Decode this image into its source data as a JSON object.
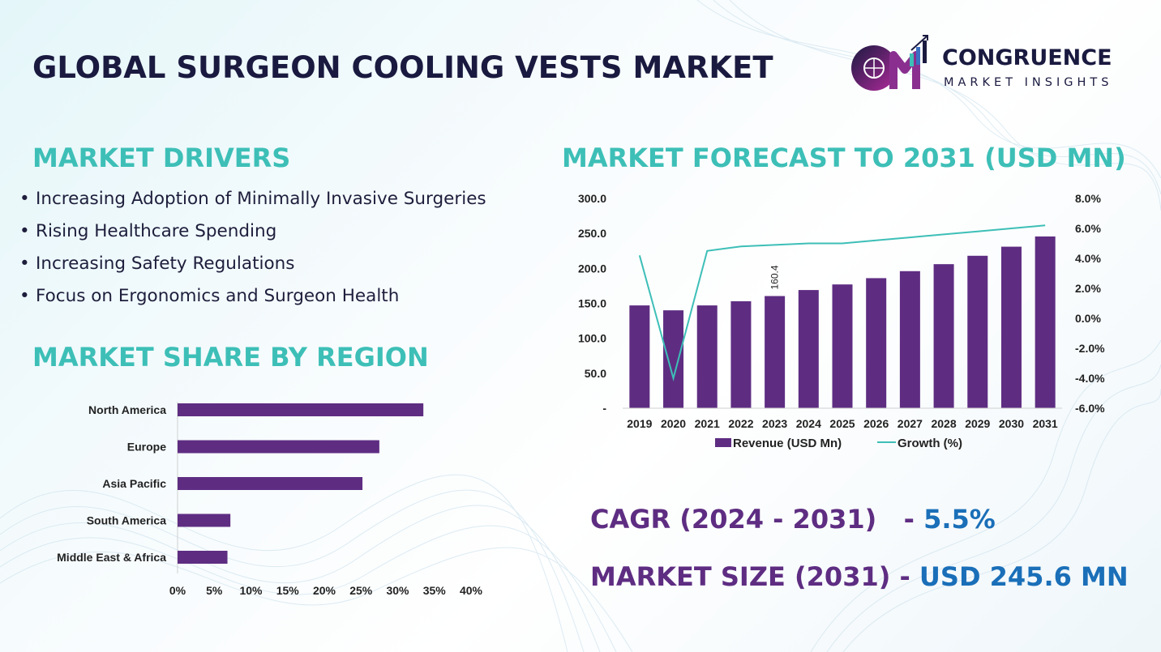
{
  "header": {
    "title": "GLOBAL SURGEON COOLING VESTS MARKET",
    "brand_name": "CONGRUENCE",
    "brand_sub": "MARKET INSIGHTS",
    "logo_letters": "CM"
  },
  "drivers": {
    "heading": "MARKET DRIVERS",
    "items": [
      "Increasing Adoption of Minimally Invasive Surgeries",
      "Rising Healthcare Spending",
      "Increasing Safety Regulations",
      "Focus on Ergonomics and Surgeon Health"
    ]
  },
  "region": {
    "heading": "MARKET SHARE BY REGION"
  },
  "forecast": {
    "heading": "MARKET FORECAST TO 2031 (USD MN)"
  },
  "kpis": {
    "cagr_label": "CAGR (2024 - 2031)",
    "cagr_value": "5.5%",
    "size_label": "MARKET SIZE (2031)",
    "size_value": "USD 245.6 MN",
    "separator": "-"
  },
  "colors": {
    "bar": "#5e2d82",
    "line": "#3dbfb7",
    "heading": "#3dbfb7",
    "title": "#1a1a40",
    "accent_blue": "#1a6fb8"
  },
  "chart_data": [
    {
      "type": "bar",
      "orientation": "horizontal",
      "title": "MARKET SHARE BY REGION",
      "categories": [
        "North America",
        "Europe",
        "Asia Pacific",
        "South America",
        "Middle East & Africa"
      ],
      "values": [
        33.5,
        27.5,
        25.2,
        7.2,
        6.8
      ],
      "unit": "%",
      "xlim": [
        0,
        40
      ],
      "ticks": [
        "0%",
        "5%",
        "10%",
        "15%",
        "20%",
        "25%",
        "30%",
        "35%",
        "40%"
      ]
    },
    {
      "type": "bar",
      "title": "MARKET FORECAST TO 2031 (USD MN)",
      "categories": [
        "2019",
        "2020",
        "2021",
        "2022",
        "2023",
        "2024",
        "2025",
        "2026",
        "2027",
        "2028",
        "2029",
        "2030",
        "2031"
      ],
      "series": [
        {
          "name": "Revenue (USD Mn)",
          "type": "bar",
          "axis": "left",
          "values": [
            147,
            140,
            147,
            153,
            160.4,
            169,
            177,
            186,
            196,
            206,
            218,
            231,
            245.6
          ]
        },
        {
          "name": "Growth (%)",
          "type": "line",
          "axis": "right",
          "values": [
            4.2,
            -4.0,
            4.5,
            4.8,
            4.9,
            5.0,
            5.0,
            5.2,
            5.4,
            5.6,
            5.8,
            6.0,
            6.2
          ]
        }
      ],
      "ylim_left": [
        0,
        300
      ],
      "ylim_right": [
        -6,
        8
      ],
      "left_ticks": [
        "-",
        "50.0",
        "100.0",
        "150.0",
        "200.0",
        "250.0",
        "300.0"
      ],
      "right_ticks": [
        "-6.0%",
        "-4.0%",
        "-2.0%",
        "0.0%",
        "2.0%",
        "4.0%",
        "6.0%",
        "8.0%"
      ],
      "data_labels": [
        {
          "category": "2023",
          "text": "160.4"
        }
      ],
      "legend": [
        "Revenue (USD Mn)",
        "Growth (%)"
      ]
    }
  ]
}
